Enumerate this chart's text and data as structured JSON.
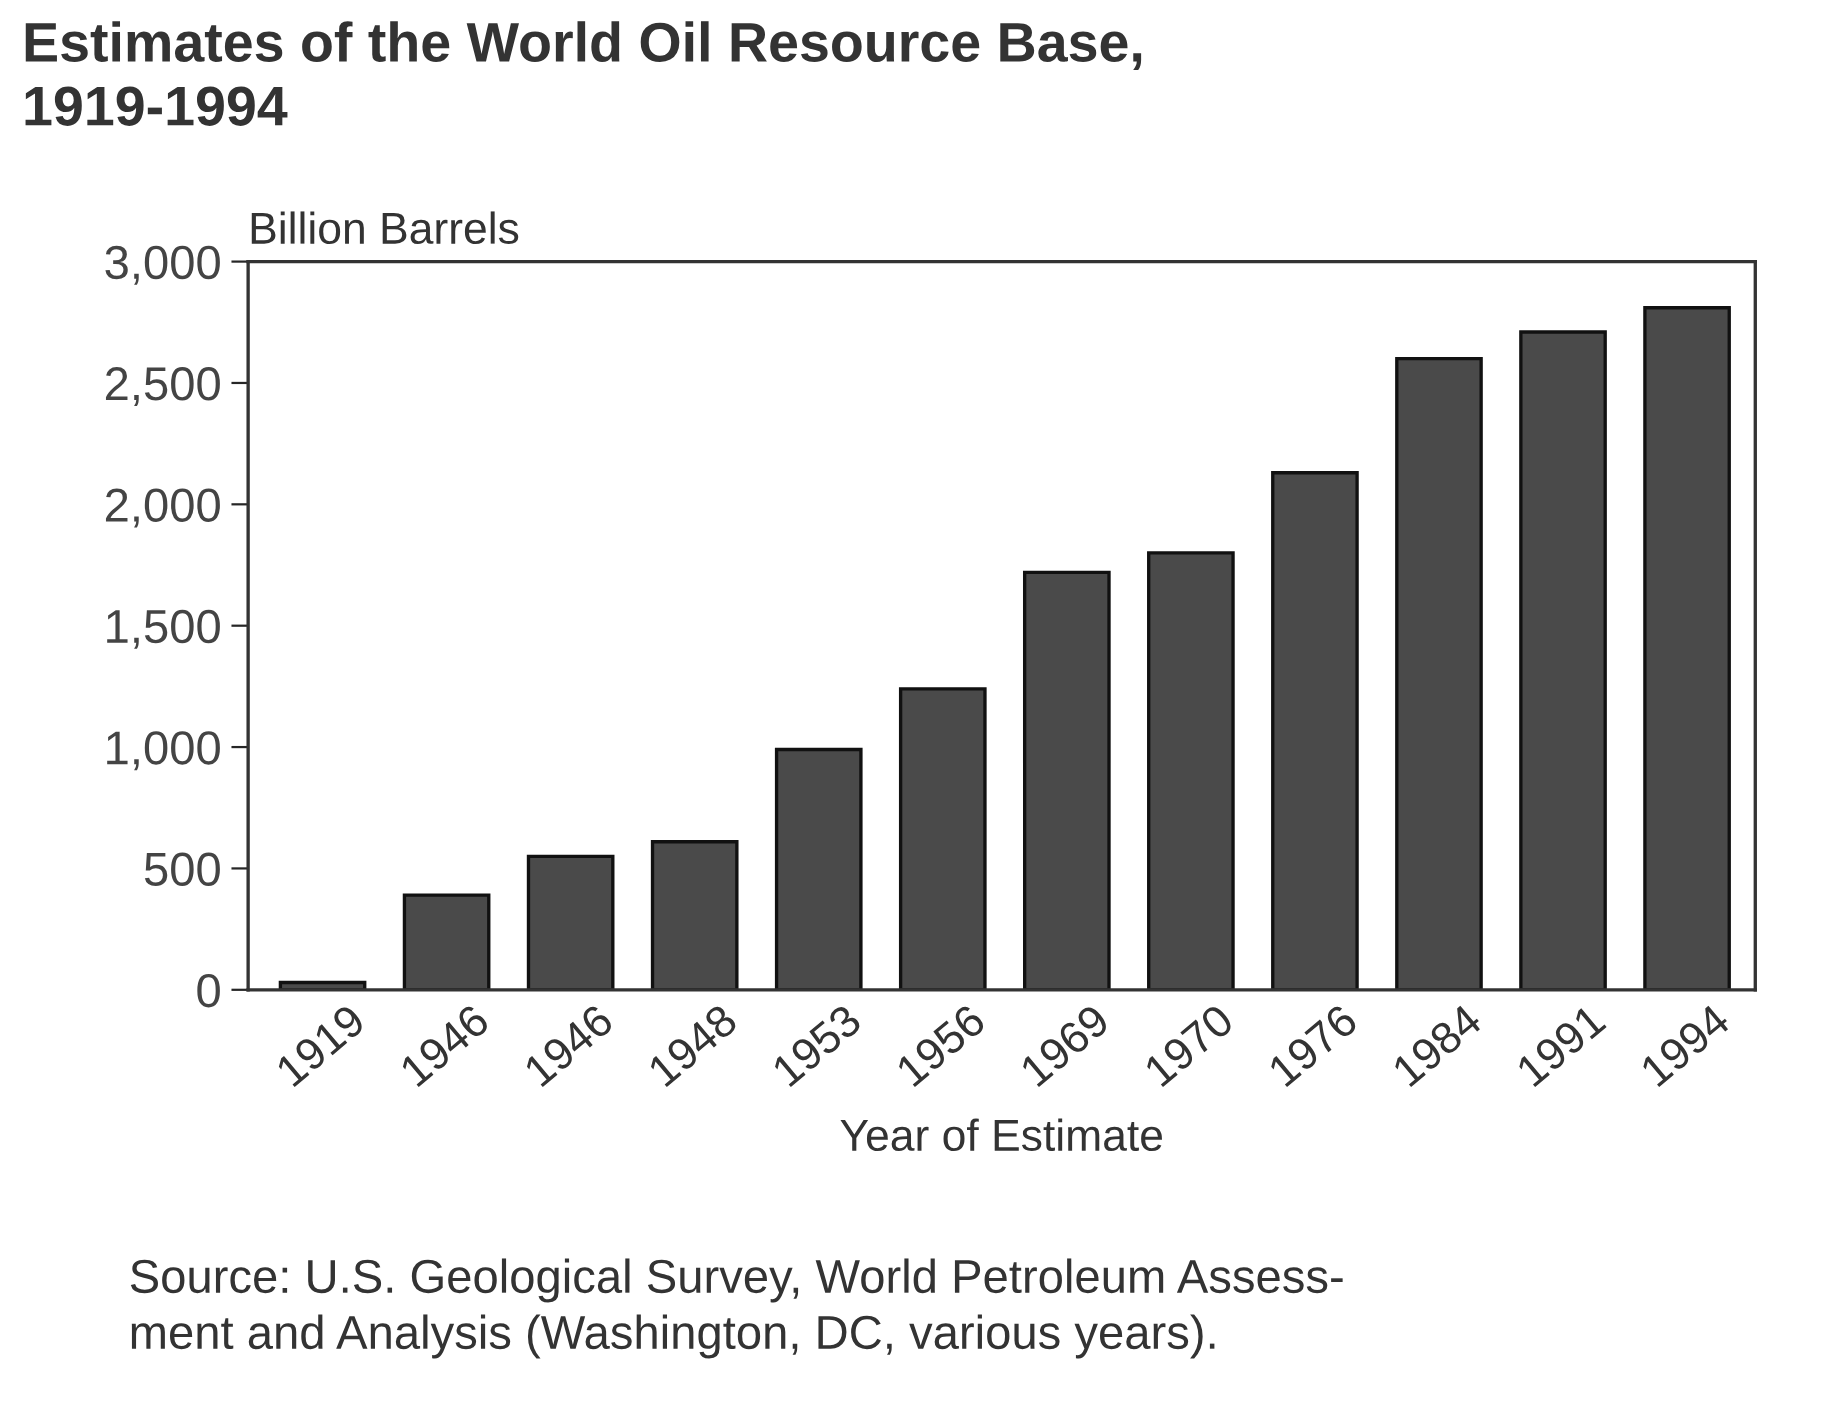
{
  "chart_data": {
    "type": "bar",
    "title": "Estimates of the World Oil Resource Base,\n1919-1994",
    "ylabel": "Billion Barrels",
    "xlabel": "Year of Estimate",
    "categories": [
      "1919",
      "1946",
      "1946",
      "1948",
      "1953",
      "1956",
      "1969",
      "1970",
      "1976",
      "1984",
      "1991",
      "1994"
    ],
    "values": [
      30,
      390,
      550,
      610,
      990,
      1240,
      1720,
      1800,
      2130,
      2600,
      2710,
      2810
    ],
    "color": "#4a4a4a",
    "ylim": [
      0,
      3000
    ],
    "yticks": [
      {
        "value": 0,
        "label": "0"
      },
      {
        "value": 500,
        "label": "500"
      },
      {
        "value": 1000,
        "label": "1,000"
      },
      {
        "value": 1500,
        "label": "1,500"
      },
      {
        "value": 2000,
        "label": "2,000"
      },
      {
        "value": 2500,
        "label": "2,500"
      },
      {
        "value": 3000,
        "label": "3,000"
      }
    ],
    "annotations": [
      "Source: U.S. Geological Survey, World Petroleum Assess-\nment and Analysis (Washington, DC, various years)."
    ]
  }
}
